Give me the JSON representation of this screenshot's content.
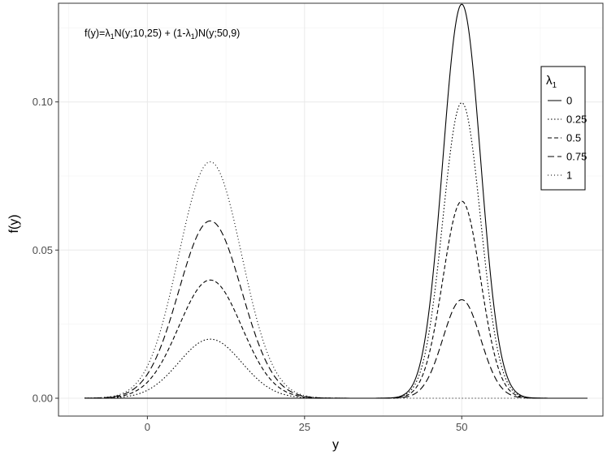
{
  "chart_data": {
    "type": "line",
    "title": "",
    "xlabel": "y",
    "ylabel": "f(y)",
    "xlim": [
      -10,
      70
    ],
    "ylim": [
      0,
      0.1333
    ],
    "x_ticks": [
      0,
      25,
      50
    ],
    "x_tick_labels": [
      "0",
      "25",
      "50"
    ],
    "y_ticks": [
      0,
      0.05,
      0.1
    ],
    "y_tick_labels": [
      "0.00",
      "0.05",
      "0.10"
    ],
    "grid": true,
    "annotation": {
      "prefix": "f(y)=",
      "lambda": "λ",
      "sub": "1",
      "mid1": "N(y;10,25) + (1-",
      "mid2": ")N(y;50,9)"
    },
    "legend": {
      "title_symbol": "λ",
      "title_sub": "1",
      "placement": "top-right"
    },
    "model": {
      "component1": {
        "mean": 10,
        "variance": 25
      },
      "component2": {
        "mean": 50,
        "variance": 9
      },
      "x_range": [
        -10,
        70
      ]
    },
    "series": [
      {
        "name": "0",
        "lambda": 0,
        "dash": "solid"
      },
      {
        "name": "0.25",
        "lambda": 0.25,
        "dash": "dotted"
      },
      {
        "name": "0.5",
        "lambda": 0.5,
        "dash": "dashed"
      },
      {
        "name": "0.75",
        "lambda": 0.75,
        "dash": "longdash"
      },
      {
        "name": "1",
        "lambda": 1,
        "dash": "dotted-sparse"
      }
    ]
  }
}
